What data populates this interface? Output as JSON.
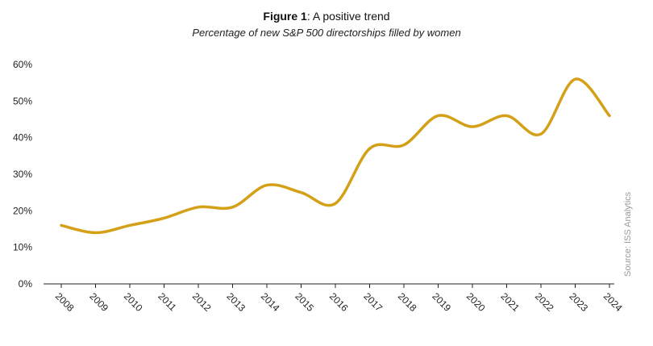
{
  "title": {
    "bold": "Figure 1",
    "rest": ": A positive trend"
  },
  "subtitle": "Percentage of new S&P 500 directorships filled by women",
  "source": "Source: ISS Analytics",
  "chart_data": {
    "type": "line",
    "categories": [
      "2008",
      "2009",
      "2010",
      "2011",
      "2012",
      "2013",
      "2014",
      "2015",
      "2016",
      "2017",
      "2018",
      "2019",
      "2020",
      "2021",
      "2022",
      "2023",
      "2024"
    ],
    "series": [
      {
        "values": [
          16,
          14,
          16,
          18,
          21,
          21,
          27,
          25,
          22,
          37,
          38,
          46,
          43,
          46,
          41,
          56,
          46
        ]
      }
    ],
    "yticks": [
      0,
      10,
      20,
      30,
      40,
      50,
      60
    ],
    "ytick_labels": [
      "0%",
      "10%",
      "20%",
      "30%",
      "40%",
      "50%",
      "60%"
    ],
    "ylim": [
      0,
      60
    ],
    "grid": false,
    "line_color": "#d4a017",
    "xlabel": "",
    "ylabel": ""
  }
}
